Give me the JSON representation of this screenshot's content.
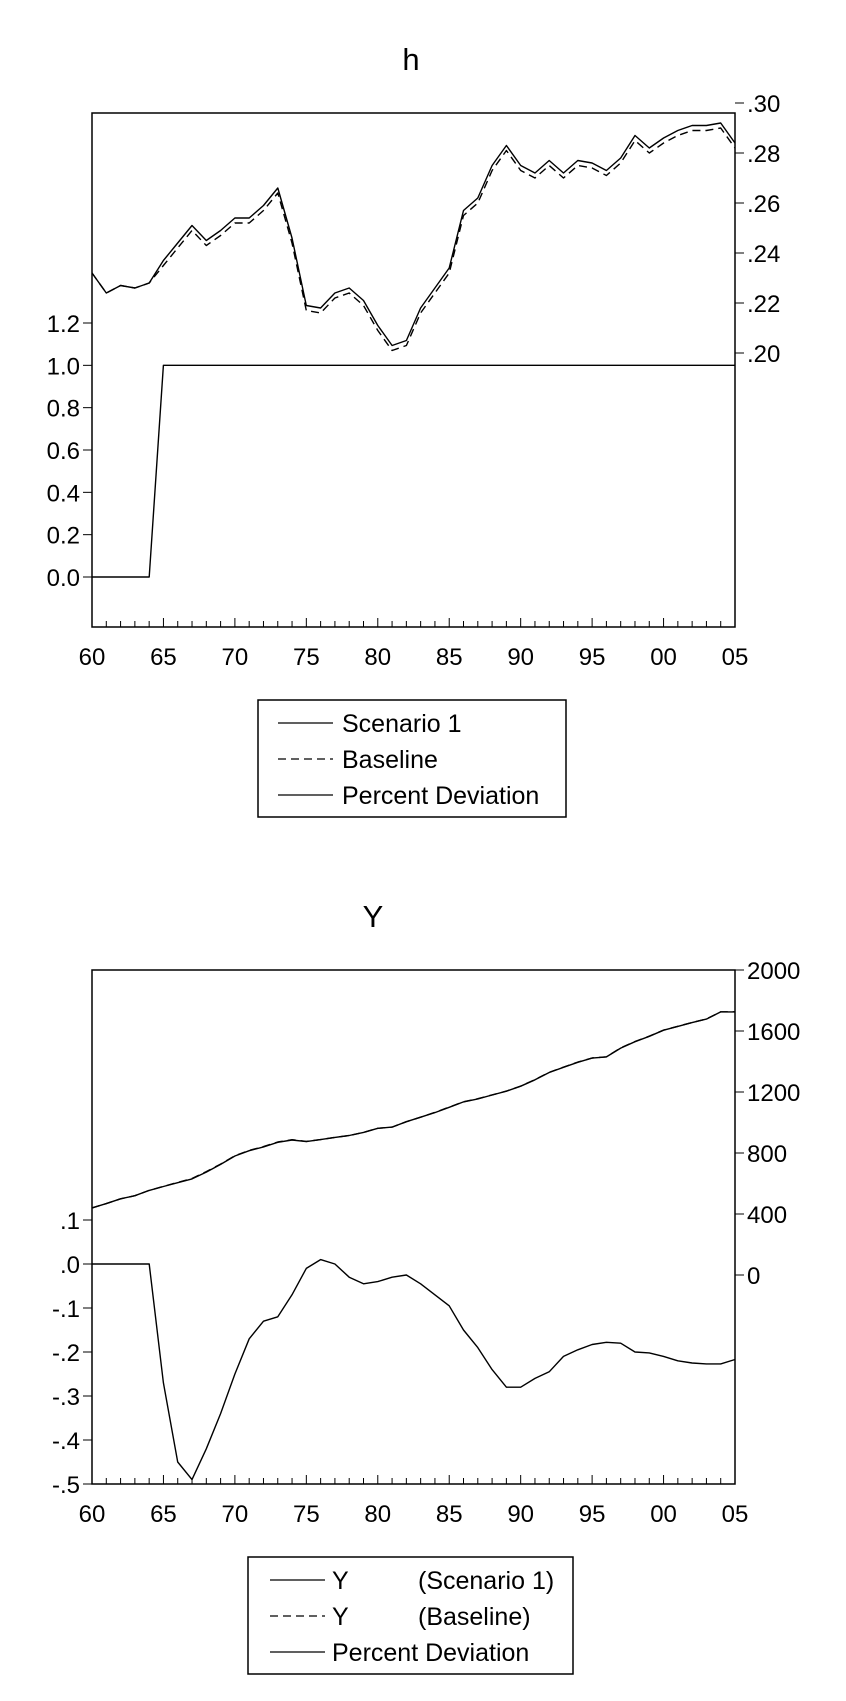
{
  "chart_data": [
    {
      "type": "line",
      "title": "h",
      "x_tick_labels": [
        "60",
        "65",
        "70",
        "75",
        "80",
        "85",
        "90",
        "95",
        "00",
        "05"
      ],
      "x_range": [
        1960,
        2005
      ],
      "left_axis": {
        "ticks": [
          "0.0",
          "0.2",
          "0.4",
          "0.6",
          "0.8",
          "1.0",
          "1.2"
        ],
        "range": [
          0.0,
          1.2
        ]
      },
      "right_axis": {
        "ticks": [
          ".20",
          ".22",
          ".24",
          ".26",
          ".28",
          ".30"
        ],
        "range": [
          0.2,
          0.3
        ]
      },
      "legend": {
        "placement": "bottom",
        "entries": [
          "Scenario 1",
          "Baseline",
          "Percent Deviation"
        ]
      },
      "x": [
        1960,
        1961,
        1962,
        1963,
        1964,
        1965,
        1966,
        1967,
        1968,
        1969,
        1970,
        1971,
        1972,
        1973,
        1974,
        1975,
        1976,
        1977,
        1978,
        1979,
        1980,
        1981,
        1982,
        1983,
        1984,
        1985,
        1986,
        1987,
        1988,
        1989,
        1990,
        1991,
        1992,
        1993,
        1994,
        1995,
        1996,
        1997,
        1998,
        1999,
        2000,
        2001,
        2002,
        2003,
        2004,
        2005
      ],
      "series": [
        {
          "name": "Scenario 1",
          "axis": "right",
          "style": "solid",
          "values": [
            0.232,
            0.224,
            0.227,
            0.226,
            0.228,
            0.237,
            0.244,
            0.251,
            0.245,
            0.249,
            0.254,
            0.254,
            0.259,
            0.266,
            0.246,
            0.219,
            0.218,
            0.224,
            0.226,
            0.221,
            0.211,
            0.203,
            0.205,
            0.218,
            0.226,
            0.234,
            0.257,
            0.262,
            0.275,
            0.283,
            0.275,
            0.272,
            0.277,
            0.272,
            0.277,
            0.276,
            0.273,
            0.278,
            0.287,
            0.282,
            0.286,
            0.289,
            0.291,
            0.291,
            0.292,
            0.284
          ]
        },
        {
          "name": "Baseline",
          "axis": "right",
          "style": "dashed",
          "values": [
            0.232,
            0.224,
            0.227,
            0.226,
            0.228,
            0.235,
            0.242,
            0.249,
            0.243,
            0.247,
            0.252,
            0.252,
            0.257,
            0.264,
            0.244,
            0.217,
            0.216,
            0.222,
            0.224,
            0.219,
            0.209,
            0.201,
            0.203,
            0.216,
            0.224,
            0.232,
            0.255,
            0.26,
            0.273,
            0.281,
            0.273,
            0.27,
            0.275,
            0.27,
            0.275,
            0.274,
            0.271,
            0.276,
            0.285,
            0.28,
            0.284,
            0.287,
            0.289,
            0.289,
            0.29,
            0.282
          ]
        },
        {
          "name": "Percent Deviation",
          "axis": "left",
          "style": "solid",
          "values": [
            0.0,
            0.0,
            0.0,
            0.0,
            0.0,
            1.0,
            1.0,
            1.0,
            1.0,
            1.0,
            1.0,
            1.0,
            1.0,
            1.0,
            1.0,
            1.0,
            1.0,
            1.0,
            1.0,
            1.0,
            1.0,
            1.0,
            1.0,
            1.0,
            1.0,
            1.0,
            1.0,
            1.0,
            1.0,
            1.0,
            1.0,
            1.0,
            1.0,
            1.0,
            1.0,
            1.0,
            1.0,
            1.0,
            1.0,
            1.0,
            1.0,
            1.0,
            1.0,
            1.0,
            1.0,
            1.0
          ]
        }
      ]
    },
    {
      "type": "line",
      "title": "Y",
      "x_tick_labels": [
        "60",
        "65",
        "70",
        "75",
        "80",
        "85",
        "90",
        "95",
        "00",
        "05"
      ],
      "x_range": [
        1960,
        2005
      ],
      "left_axis": {
        "ticks": [
          "-.5",
          "-.4",
          "-.3",
          "-.2",
          "-.1",
          ".0",
          ".1"
        ],
        "range": [
          -0.5,
          0.1
        ]
      },
      "right_axis": {
        "ticks": [
          "0",
          "400",
          "800",
          "1200",
          "1600",
          "2000"
        ],
        "range": [
          0,
          2000
        ]
      },
      "legend": {
        "placement": "bottom",
        "entries": [
          {
            "name": "Y",
            "note": "(Scenario 1)"
          },
          {
            "name": "Y",
            "note": "(Baseline)"
          },
          {
            "name": "Percent Deviation",
            "note": ""
          }
        ]
      },
      "x": [
        1960,
        1961,
        1962,
        1963,
        1964,
        1965,
        1966,
        1967,
        1968,
        1969,
        1970,
        1971,
        1972,
        1973,
        1974,
        1975,
        1976,
        1977,
        1978,
        1979,
        1980,
        1981,
        1982,
        1983,
        1984,
        1985,
        1986,
        1987,
        1988,
        1989,
        1990,
        1991,
        1992,
        1993,
        1994,
        1995,
        1996,
        1997,
        1998,
        1999,
        2000,
        2001,
        2002,
        2003,
        2004,
        2005
      ],
      "series": [
        {
          "name": "Y (Scenario 1)",
          "axis": "right",
          "style": "solid",
          "values": [
            440,
            468,
            500,
            520,
            555,
            580,
            605,
            630,
            675,
            725,
            780,
            815,
            840,
            870,
            885,
            875,
            888,
            902,
            915,
            935,
            962,
            970,
            1005,
            1035,
            1065,
            1100,
            1135,
            1155,
            1180,
            1205,
            1238,
            1280,
            1328,
            1362,
            1395,
            1422,
            1430,
            1488,
            1530,
            1565,
            1605,
            1630,
            1655,
            1678,
            1725,
            1725
          ]
        },
        {
          "name": "Y (Baseline)",
          "axis": "right",
          "style": "dashed",
          "values": [
            440,
            468,
            500,
            520,
            555,
            581,
            607,
            633,
            678,
            727,
            782,
            817,
            842,
            872,
            887,
            876,
            888,
            902,
            915,
            935,
            962,
            970,
            1005,
            1035,
            1066,
            1101,
            1136,
            1156,
            1181,
            1206,
            1239,
            1281,
            1329,
            1363,
            1396,
            1423,
            1431,
            1489,
            1531,
            1566,
            1606,
            1631,
            1656,
            1679,
            1726,
            1726
          ]
        },
        {
          "name": "Percent Deviation",
          "axis": "left",
          "style": "solid",
          "values": [
            0.0,
            0.0,
            0.0,
            0.0,
            0.0,
            -0.27,
            -0.45,
            -0.49,
            -0.42,
            -0.34,
            -0.25,
            -0.17,
            -0.13,
            -0.12,
            -0.07,
            -0.01,
            0.01,
            0.0,
            -0.03,
            -0.045,
            -0.04,
            -0.03,
            -0.025,
            -0.045,
            -0.07,
            -0.095,
            -0.15,
            -0.19,
            -0.24,
            -0.28,
            -0.28,
            -0.26,
            -0.245,
            -0.21,
            -0.195,
            -0.183,
            -0.178,
            -0.18,
            -0.2,
            -0.202,
            -0.21,
            -0.22,
            -0.225,
            -0.227,
            -0.227,
            -0.217
          ]
        }
      ]
    }
  ]
}
